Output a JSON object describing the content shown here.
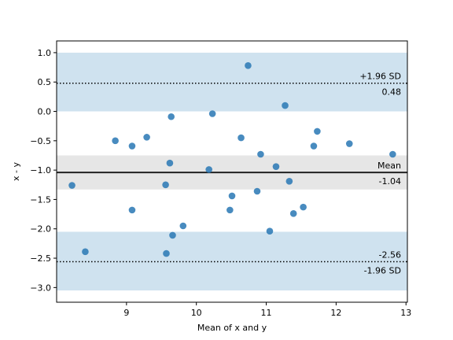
{
  "chart_data": {
    "type": "scatter",
    "title": "",
    "xlabel": "Mean of x and y",
    "ylabel": "x - y",
    "xlim": [
      8.0,
      13.02
    ],
    "ylim": [
      -3.25,
      1.2
    ],
    "xticks": [
      9,
      10,
      11,
      12,
      13
    ],
    "xtick_labels": [
      "9",
      "10",
      "11",
      "12",
      "13"
    ],
    "yticks": [
      -3.0,
      -2.5,
      -2.0,
      -1.5,
      -1.0,
      -0.5,
      0.0,
      0.5,
      1.0
    ],
    "ytick_labels": [
      "−3.0",
      "−2.5",
      "−2.0",
      "−1.5",
      "−1.0",
      "−0.5",
      "0.0",
      "0.5",
      "1.0"
    ],
    "grid": false,
    "mean": -1.04,
    "upper_loa": 0.48,
    "lower_loa": -2.56,
    "bands": [
      {
        "name": "upper-loa-band",
        "y0": 0.0,
        "y1": 1.0,
        "color": "#cfe2ef"
      },
      {
        "name": "mean-band",
        "y0": -1.33,
        "y1": -0.75,
        "color": "#e6e6e6"
      },
      {
        "name": "lower-loa-band",
        "y0": -3.05,
        "y1": -2.05,
        "color": "#cfe2ef"
      }
    ],
    "annotations": {
      "upper_title": "+1.96 SD",
      "upper_value": "0.48",
      "mean_title": "Mean",
      "mean_value": "-1.04",
      "lower_value": "-2.56",
      "lower_title": "-1.96 SD"
    },
    "point_color": "#2f7bb6",
    "points": [
      {
        "x": 8.22,
        "y": -1.26
      },
      {
        "x": 8.41,
        "y": -2.39
      },
      {
        "x": 8.84,
        "y": -0.5
      },
      {
        "x": 9.08,
        "y": -0.59
      },
      {
        "x": 9.08,
        "y": -1.68
      },
      {
        "x": 9.29,
        "y": -0.44
      },
      {
        "x": 9.56,
        "y": -1.25
      },
      {
        "x": 9.57,
        "y": -2.42
      },
      {
        "x": 9.62,
        "y": -0.88
      },
      {
        "x": 9.64,
        "y": -0.09
      },
      {
        "x": 9.66,
        "y": -2.11
      },
      {
        "x": 9.81,
        "y": -1.95
      },
      {
        "x": 10.18,
        "y": -0.99
      },
      {
        "x": 10.23,
        "y": -0.04
      },
      {
        "x": 10.48,
        "y": -1.68
      },
      {
        "x": 10.51,
        "y": -1.44
      },
      {
        "x": 10.64,
        "y": -0.45
      },
      {
        "x": 10.74,
        "y": 0.78
      },
      {
        "x": 10.87,
        "y": -1.36
      },
      {
        "x": 10.92,
        "y": -0.73
      },
      {
        "x": 11.05,
        "y": -2.04
      },
      {
        "x": 11.14,
        "y": -0.94
      },
      {
        "x": 11.27,
        "y": 0.1
      },
      {
        "x": 11.33,
        "y": -1.19
      },
      {
        "x": 11.39,
        "y": -1.74
      },
      {
        "x": 11.53,
        "y": -1.63
      },
      {
        "x": 11.68,
        "y": -0.59
      },
      {
        "x": 11.73,
        "y": -0.34
      },
      {
        "x": 12.19,
        "y": -0.55
      },
      {
        "x": 12.81,
        "y": -0.73
      }
    ]
  }
}
